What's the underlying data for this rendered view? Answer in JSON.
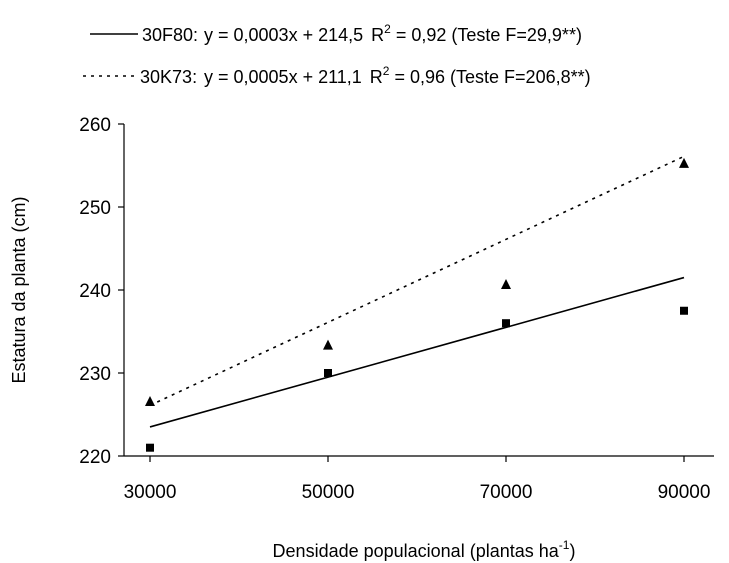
{
  "chart_data": {
    "type": "scatter",
    "xlabel": "Densidade populacional (plantas ha",
    "xlabel_sup": "-1",
    "xlabel_end": ")",
    "ylabel": "Estatura da planta (cm)",
    "xlim": [
      30000,
      90000
    ],
    "ylim": [
      220,
      260
    ],
    "x_ticks": [
      "30000",
      "50000",
      "70000",
      "90000"
    ],
    "y_ticks": [
      "220",
      "230",
      "240",
      "250",
      "260"
    ],
    "grid": false,
    "legend_placement": "top",
    "series": [
      {
        "name": "30F80",
        "marker": "square",
        "line_style": "solid",
        "x": [
          30000,
          50000,
          70000,
          90000
        ],
        "y": [
          221.0,
          230.0,
          236.0,
          237.5
        ],
        "equation": "y = 0,0003x + 214,5",
        "r2_label": "R",
        "r2_sup": "2",
        "r2_value": " = 0,92 (Teste F=29,9**)",
        "fit": {
          "slope": 0.0003,
          "intercept": 214.5
        }
      },
      {
        "name": "30K73",
        "marker": "triangle",
        "line_style": "dotted",
        "x": [
          30000,
          50000,
          70000,
          90000
        ],
        "y": [
          226.5,
          233.3,
          240.6,
          255.2
        ],
        "equation": "y = 0,0005x + 211,1",
        "r2_label": "R",
        "r2_sup": "2",
        "r2_value": " = 0,96 (Teste F=206,8**)",
        "fit": {
          "slope": 0.0005,
          "intercept": 211.1
        }
      }
    ]
  }
}
